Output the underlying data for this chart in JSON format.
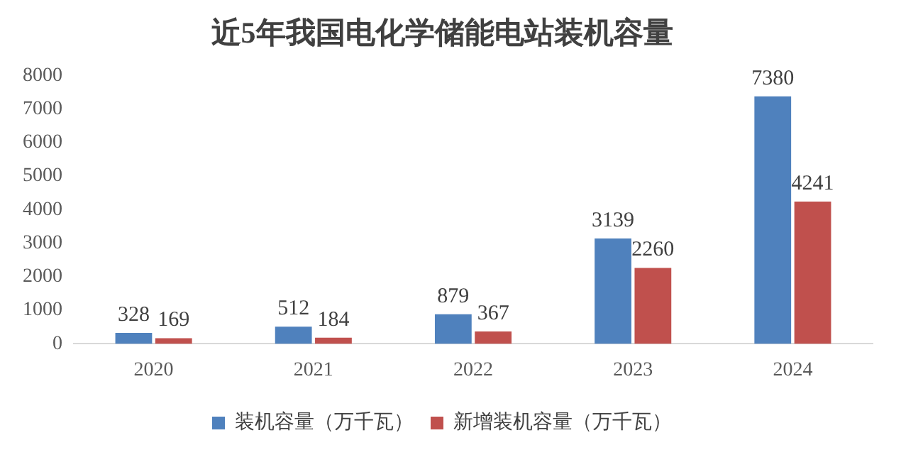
{
  "chart_data": {
    "type": "bar",
    "title": "近5年我国电化学储能电站装机容量",
    "categories": [
      "2020",
      "2021",
      "2022",
      "2023",
      "2024"
    ],
    "series": [
      {
        "name": "装机容量（万千瓦）",
        "color": "#4f81bd",
        "values": [
          328,
          512,
          879,
          3139,
          7380
        ]
      },
      {
        "name": "新增装机容量（万千瓦）",
        "color": "#c0504d",
        "values": [
          169,
          184,
          367,
          2260,
          4241
        ]
      }
    ],
    "ylim": [
      0,
      8000
    ],
    "yticks": [
      0,
      1000,
      2000,
      3000,
      4000,
      5000,
      6000,
      7000,
      8000
    ],
    "grid": false,
    "legend": "bottom",
    "data_labels": true
  }
}
